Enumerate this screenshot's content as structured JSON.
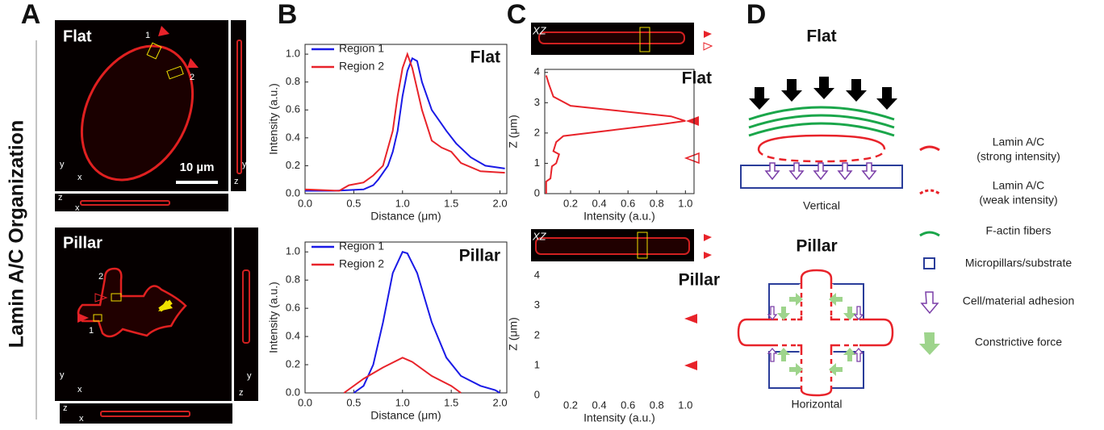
{
  "panels": {
    "A": {
      "letter": "A",
      "side_label": "Lamin A/C Organization",
      "flat_label": "Flat",
      "pillar_label": "Pillar",
      "scale_bar": "10 µm",
      "region_1": "1",
      "region_2": "2",
      "axis_x": "x",
      "axis_y": "y",
      "axis_z": "z"
    },
    "B": {
      "letter": "B"
    },
    "C": {
      "letter": "C",
      "strip_label": "XZ"
    },
    "D": {
      "letter": "D",
      "flat_title": "Flat",
      "flat_caption": "Vertical",
      "pillar_title": "Pillar",
      "pillar_caption": "Horizontal",
      "legend": [
        {
          "lines": [
            "Lamin A/C",
            "(strong intensity)"
          ]
        },
        {
          "lines": [
            "Lamin A/C",
            "(weak intensity)"
          ]
        },
        {
          "lines": [
            "F-actin fibers"
          ]
        },
        {
          "lines": [
            "Micropillars/substrate"
          ]
        },
        {
          "lines": [
            "Cell/material adhesion"
          ]
        },
        {
          "lines": [
            "Constrictive force"
          ]
        }
      ]
    }
  },
  "chart_data": [
    {
      "type": "line",
      "title": "Flat",
      "x_label": "Distance (μm)",
      "y_label": "Intensity (a.u.)",
      "legend": "upper left",
      "frame": true,
      "xlim": [
        0,
        2.07
      ],
      "xticks": [
        {
          "value": 0,
          "label": "0.0"
        },
        {
          "value": 0.5,
          "label": "0.5"
        },
        {
          "value": 1,
          "label": "1.0"
        },
        {
          "value": 1.5,
          "label": "1.5"
        },
        {
          "value": 2,
          "label": "2.0"
        }
      ],
      "ylim": [
        0,
        1.07
      ],
      "yticks": [
        {
          "value": 0,
          "label": "0.0"
        },
        0.2,
        0.4,
        0.6,
        0.8,
        {
          "value": 1,
          "label": "1.0"
        }
      ],
      "series": [
        {
          "name": "Region 1",
          "color": "#1a1ae6",
          "x": [
            0,
            0.3,
            0.6,
            0.7,
            0.75,
            0.85,
            0.9,
            0.95,
            1.0,
            1.05,
            1.1,
            1.15,
            1.2,
            1.3,
            1.4,
            1.45,
            1.55,
            1.7,
            1.85,
            2.05
          ],
          "values": [
            0.02,
            0.02,
            0.03,
            0.06,
            0.1,
            0.2,
            0.3,
            0.45,
            0.7,
            0.88,
            0.97,
            0.95,
            0.8,
            0.6,
            0.5,
            0.45,
            0.36,
            0.26,
            0.2,
            0.18
          ]
        },
        {
          "name": "Region 2",
          "color": "#e8232a",
          "x": [
            0,
            0.35,
            0.45,
            0.6,
            0.7,
            0.8,
            0.9,
            0.95,
            1.0,
            1.05,
            1.1,
            1.2,
            1.3,
            1.4,
            1.5,
            1.6,
            1.8,
            2.05
          ],
          "values": [
            0.03,
            0.02,
            0.06,
            0.08,
            0.13,
            0.2,
            0.45,
            0.7,
            0.9,
            1.0,
            0.9,
            0.6,
            0.38,
            0.33,
            0.3,
            0.22,
            0.16,
            0.15
          ]
        }
      ]
    },
    {
      "type": "line",
      "title": "Pillar",
      "x_label": "Distance (μm)",
      "y_label": "Intensity (a.u.)",
      "legend": "upper left",
      "frame": true,
      "xlim": [
        0,
        2.07
      ],
      "xticks": [
        {
          "value": 0,
          "label": "0.0"
        },
        {
          "value": 0.5,
          "label": "0.5"
        },
        {
          "value": 1,
          "label": "1.0"
        },
        {
          "value": 1.5,
          "label": "1.5"
        },
        {
          "value": 2,
          "label": "2.0"
        }
      ],
      "ylim": [
        0,
        1.07
      ],
      "yticks": [
        {
          "value": 0,
          "label": "0.0"
        },
        0.2,
        0.4,
        0.6,
        0.8,
        {
          "value": 1,
          "label": "1.0"
        }
      ],
      "series": [
        {
          "name": "Region 1",
          "color": "#1a1ae6",
          "x": [
            0.5,
            0.6,
            0.7,
            0.8,
            0.9,
            1.0,
            1.05,
            1.15,
            1.3,
            1.45,
            1.6,
            1.8,
            1.95,
            2.0
          ],
          "values": [
            0.0,
            0.05,
            0.2,
            0.5,
            0.85,
            1.0,
            0.99,
            0.85,
            0.5,
            0.25,
            0.12,
            0.05,
            0.02,
            0.0
          ]
        },
        {
          "name": "Region 2",
          "color": "#e8232a",
          "x": [
            0.4,
            0.6,
            0.8,
            1.0,
            1.1,
            1.3,
            1.5,
            1.6
          ],
          "values": [
            0.0,
            0.1,
            0.18,
            0.25,
            0.22,
            0.12,
            0.05,
            0.0
          ]
        }
      ]
    },
    {
      "type": "line",
      "title": "Flat",
      "x_label": "Intensity (a.u.)",
      "y_label": "Z (μm)",
      "frame": true,
      "xlim": [
        0.02,
        1.06
      ],
      "xticks": [
        0.2,
        0.4,
        0.6,
        0.8,
        {
          "value": 1,
          "label": "1.0"
        }
      ],
      "ylim": [
        0,
        4.1
      ],
      "yticks": [
        0,
        1,
        2,
        3,
        4
      ],
      "series": [
        {
          "color": "#e8232a",
          "x": [
            0.03,
            0.03,
            0.06,
            0.07,
            0.1,
            0.12,
            0.08,
            0.1,
            0.15,
            0.5,
            0.85,
            1.0,
            0.9,
            0.6,
            0.2,
            0.08,
            0.05,
            0.03
          ],
          "values": [
            0,
            0.4,
            0.5,
            0.9,
            1.0,
            1.3,
            1.4,
            1.7,
            1.9,
            2.1,
            2.3,
            2.4,
            2.55,
            2.7,
            2.9,
            3.2,
            3.6,
            3.9
          ]
        }
      ]
    },
    {
      "type": "line",
      "title": "Pillar",
      "x_label": "Intensity (a.u.)",
      "y_label": "Z (μm)",
      "frame": false,
      "xlim": [
        0.02,
        1.06
      ],
      "xticks": [
        0.2,
        0.4,
        0.6,
        0.8,
        {
          "value": 1,
          "label": "1.0"
        }
      ],
      "ylim": [
        0,
        4.1
      ],
      "yticks": [
        0,
        1,
        2,
        3,
        4
      ],
      "series": []
    }
  ]
}
